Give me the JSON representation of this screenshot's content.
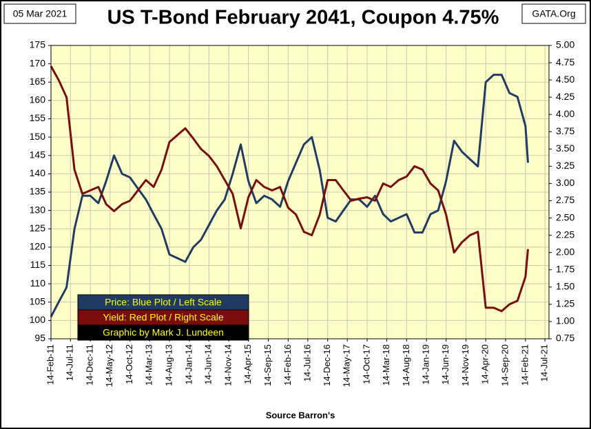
{
  "chart_data": {
    "type": "line",
    "title": "US T-Bond February 2041, Coupon 4.75%",
    "date_label": "05 Mar 2021",
    "site_label": "GATA.Org",
    "xlabel": "Source Barron's",
    "credit": "Graphic by Mark J. Lundeen",
    "x": [
      "2011-02-14",
      "2011-04-14",
      "2011-06-14",
      "2011-08-14",
      "2011-10-14",
      "2011-12-14",
      "2012-02-14",
      "2012-04-14",
      "2012-06-14",
      "2012-08-14",
      "2012-10-14",
      "2012-12-14",
      "2013-02-14",
      "2013-04-14",
      "2013-06-14",
      "2013-08-14",
      "2013-10-14",
      "2013-12-14",
      "2014-02-14",
      "2014-04-14",
      "2014-06-14",
      "2014-08-14",
      "2014-10-14",
      "2014-12-14",
      "2015-02-14",
      "2015-04-14",
      "2015-06-14",
      "2015-08-14",
      "2015-10-14",
      "2015-12-14",
      "2016-02-14",
      "2016-04-14",
      "2016-06-14",
      "2016-08-14",
      "2016-10-14",
      "2016-12-14",
      "2017-02-14",
      "2017-04-14",
      "2017-06-14",
      "2017-08-14",
      "2017-10-14",
      "2017-12-14",
      "2018-02-14",
      "2018-04-14",
      "2018-06-14",
      "2018-08-14",
      "2018-10-14",
      "2018-12-14",
      "2019-02-14",
      "2019-04-14",
      "2019-06-14",
      "2019-08-14",
      "2019-10-14",
      "2019-12-14",
      "2020-02-14",
      "2020-04-14",
      "2020-06-14",
      "2020-08-14",
      "2020-10-14",
      "2020-12-14",
      "2021-02-14",
      "2021-03-05"
    ],
    "series": [
      {
        "name": "Price:  Blue Plot / Left Scale",
        "color": "#1f3b64",
        "axis": "y",
        "values": [
          101,
          105,
          109,
          125,
          134,
          134,
          132,
          138,
          145,
          140,
          139,
          136,
          133,
          129,
          125,
          118,
          117,
          116,
          120,
          122,
          126,
          130,
          133,
          140,
          148,
          138,
          132,
          134,
          133,
          131,
          138,
          143,
          148,
          150,
          141,
          128,
          127,
          130,
          133,
          133,
          131,
          134,
          129,
          127,
          128,
          129,
          124,
          124,
          129,
          130,
          138,
          149,
          146,
          144,
          142,
          165,
          167,
          167,
          162,
          161,
          153,
          143
        ]
      },
      {
        "name": "Yield:  Red Plot / Right Scale",
        "color": "#7a0c0c",
        "axis": "y2",
        "values": [
          4.7,
          4.5,
          4.25,
          3.2,
          2.85,
          2.9,
          2.95,
          2.7,
          2.6,
          2.7,
          2.75,
          2.9,
          3.05,
          2.95,
          3.2,
          3.6,
          3.7,
          3.8,
          3.65,
          3.5,
          3.4,
          3.25,
          3.05,
          2.85,
          2.35,
          2.8,
          3.05,
          2.95,
          2.9,
          2.95,
          2.65,
          2.55,
          2.3,
          2.25,
          2.55,
          3.05,
          3.05,
          2.9,
          2.75,
          2.78,
          2.8,
          2.75,
          3.0,
          2.95,
          3.05,
          3.1,
          3.25,
          3.2,
          3.0,
          2.9,
          2.55,
          2.0,
          2.15,
          2.25,
          2.3,
          1.2,
          1.2,
          1.15,
          1.25,
          1.3,
          1.65,
          2.05
        ]
      }
    ],
    "xlim": [
      "2011-02-14",
      "2021-08-14"
    ],
    "xticks": [
      {
        "value": "2011-02-14",
        "label": "14-Feb-11"
      },
      {
        "value": "2011-07-14",
        "label": "14-Jul-11"
      },
      {
        "value": "2011-12-14",
        "label": "14-Dec-11"
      },
      {
        "value": "2012-05-14",
        "label": "14-May-12"
      },
      {
        "value": "2012-10-14",
        "label": "14-Oct-12"
      },
      {
        "value": "2013-03-14",
        "label": "14-Mar-13"
      },
      {
        "value": "2013-08-14",
        "label": "14-Aug-13"
      },
      {
        "value": "2014-01-14",
        "label": "14-Jan-14"
      },
      {
        "value": "2014-06-14",
        "label": "14-Jun-14"
      },
      {
        "value": "2014-11-14",
        "label": "14-Nov-14"
      },
      {
        "value": "2015-04-14",
        "label": "14-Apr-15"
      },
      {
        "value": "2015-09-14",
        "label": "14-Sep-15"
      },
      {
        "value": "2016-02-14",
        "label": "14-Feb-16"
      },
      {
        "value": "2016-07-14",
        "label": "14-Jul-16"
      },
      {
        "value": "2016-12-14",
        "label": "14-Dec-16"
      },
      {
        "value": "2017-05-14",
        "label": "14-May-17"
      },
      {
        "value": "2017-10-14",
        "label": "14-Oct-17"
      },
      {
        "value": "2018-03-14",
        "label": "14-Mar-18"
      },
      {
        "value": "2018-08-14",
        "label": "14-Aug-18"
      },
      {
        "value": "2019-01-14",
        "label": "14-Jan-19"
      },
      {
        "value": "2019-06-14",
        "label": "14-Jun-19"
      },
      {
        "value": "2019-11-14",
        "label": "14-Nov-19"
      },
      {
        "value": "2020-04-14",
        "label": "14-Apr-20"
      },
      {
        "value": "2020-09-14",
        "label": "14-Sep-20"
      },
      {
        "value": "2021-02-14",
        "label": "14-Feb-21"
      },
      {
        "value": "2021-07-14",
        "label": "14-Jul-21"
      }
    ],
    "ylim": [
      95,
      175
    ],
    "yticks": [
      95,
      100,
      105,
      110,
      115,
      120,
      125,
      130,
      135,
      140,
      145,
      150,
      155,
      160,
      165,
      170,
      175
    ],
    "y2lim": [
      0.75,
      5
    ],
    "y2ticks": [
      0.75,
      {
        "value": 1,
        "label": "1.00"
      },
      1.25,
      {
        "value": 1.5,
        "label": "1.50"
      },
      1.75,
      {
        "value": 2,
        "label": "2.00"
      },
      2.25,
      {
        "value": 2.5,
        "label": "2.50"
      },
      2.75,
      {
        "value": 3,
        "label": "3.00"
      },
      3.25,
      {
        "value": 3.5,
        "label": "3.50"
      },
      3.75,
      {
        "value": 4,
        "label": "4.00"
      },
      4.25,
      {
        "value": 4.5,
        "label": "4.50"
      },
      4.75,
      {
        "value": 5,
        "label": "5.00"
      }
    ],
    "grid": true,
    "legend_text_color": "#ffff00"
  }
}
